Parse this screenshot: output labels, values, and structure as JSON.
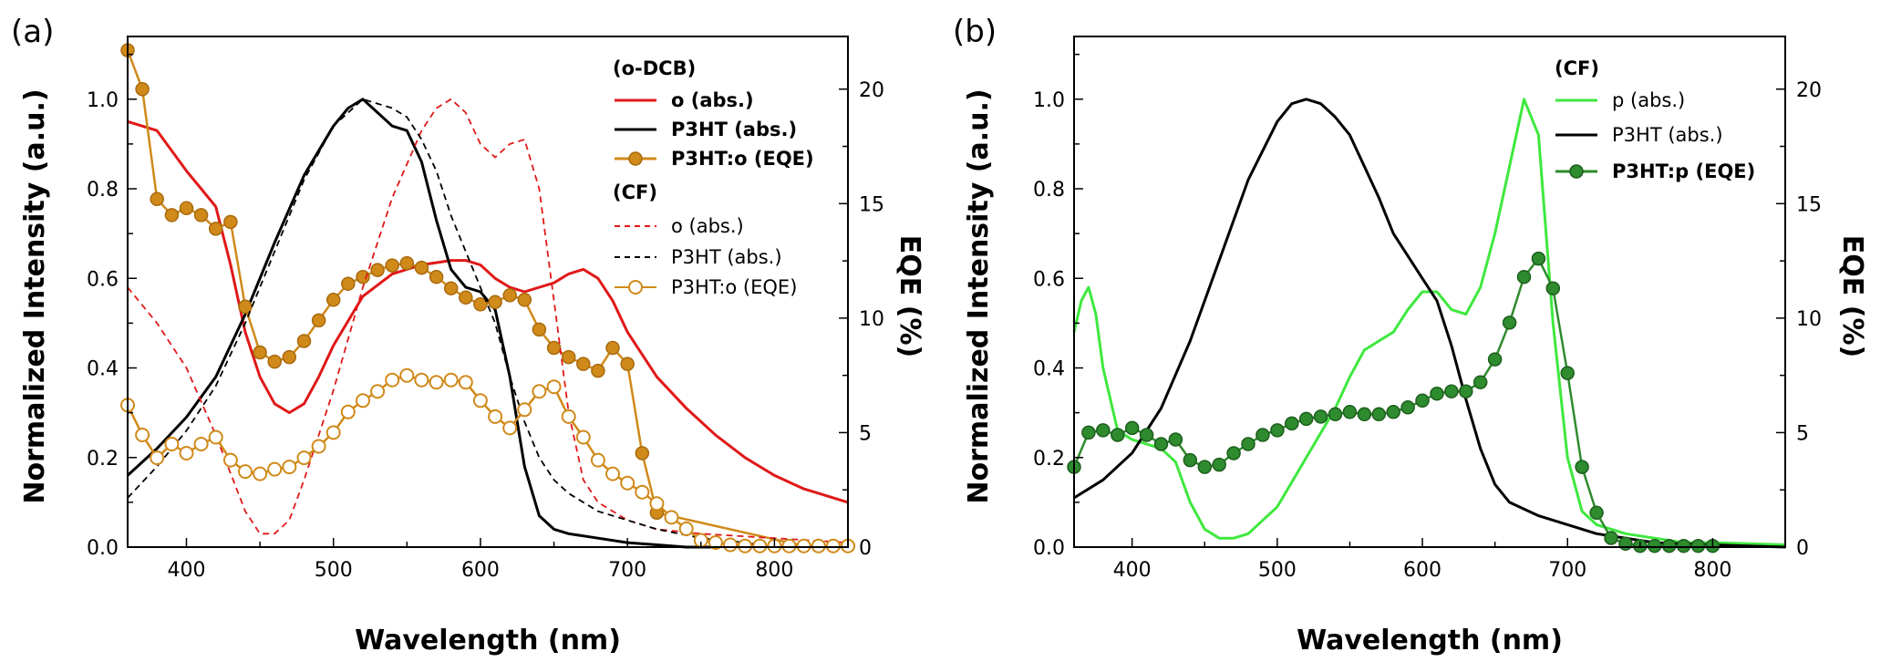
{
  "chart_data": [
    {
      "type": "line",
      "panel_label": "(a)",
      "xlabel": "Wavelength (nm)",
      "ylabel": "Normalized Intensity (a.u.)",
      "y2label": "EQE (%)",
      "xlim": [
        360,
        850
      ],
      "ylim": [
        0,
        1.14
      ],
      "y2lim": [
        0,
        22.3
      ],
      "xticks": [
        400,
        500,
        600,
        700,
        800
      ],
      "yticks": [
        0.0,
        0.2,
        0.4,
        0.6,
        0.8,
        1.0
      ],
      "y2ticks": [
        0,
        5,
        10,
        15,
        20
      ],
      "legend_groups": [
        {
          "title": "(o-DCB)",
          "entries": [
            "o (abs.)",
            "P3HT (abs.)",
            "P3HT:o (EQE)"
          ]
        },
        {
          "title": "(CF)",
          "entries": [
            "o (abs.)",
            "P3HT (abs.)",
            "P3HT:o (EQE)"
          ]
        }
      ],
      "series": [
        {
          "name": "o (abs.) (o-DCB)",
          "axis": "left",
          "color": "#e01818",
          "style": "solid",
          "x": [
            360,
            380,
            400,
            410,
            420,
            430,
            440,
            450,
            460,
            470,
            480,
            490,
            500,
            520,
            540,
            560,
            580,
            590,
            600,
            610,
            620,
            630,
            650,
            660,
            670,
            680,
            690,
            700,
            720,
            740,
            760,
            780,
            800,
            820,
            850
          ],
          "y": [
            0.95,
            0.93,
            0.84,
            0.8,
            0.76,
            0.63,
            0.48,
            0.38,
            0.32,
            0.3,
            0.32,
            0.38,
            0.45,
            0.56,
            0.61,
            0.63,
            0.64,
            0.64,
            0.63,
            0.6,
            0.58,
            0.57,
            0.59,
            0.61,
            0.62,
            0.6,
            0.55,
            0.48,
            0.38,
            0.31,
            0.25,
            0.2,
            0.16,
            0.13,
            0.1
          ]
        },
        {
          "name": "P3HT (abs.) (o-DCB)",
          "axis": "left",
          "color": "#000000",
          "style": "solid",
          "x": [
            360,
            380,
            400,
            420,
            440,
            460,
            480,
            500,
            510,
            520,
            530,
            540,
            550,
            560,
            570,
            580,
            590,
            600,
            610,
            620,
            630,
            640,
            650,
            660,
            680,
            700,
            720,
            740,
            760
          ],
          "y": [
            0.16,
            0.22,
            0.29,
            0.38,
            0.52,
            0.68,
            0.83,
            0.94,
            0.98,
            1.0,
            0.97,
            0.94,
            0.93,
            0.86,
            0.73,
            0.62,
            0.58,
            0.57,
            0.53,
            0.38,
            0.18,
            0.07,
            0.04,
            0.03,
            0.02,
            0.01,
            0.005,
            0.0,
            0.0
          ]
        },
        {
          "name": "P3HT:o (EQE) (o-DCB)",
          "axis": "right",
          "color": "#d08a1a",
          "style": "solid",
          "marker": "filled",
          "x": [
            360,
            370,
            380,
            390,
            400,
            410,
            420,
            430,
            440,
            450,
            460,
            470,
            480,
            490,
            500,
            510,
            520,
            530,
            540,
            550,
            560,
            570,
            580,
            590,
            600,
            610,
            620,
            630,
            640,
            650,
            660,
            670,
            680,
            690,
            700,
            710,
            720,
            820,
            830,
            840,
            850
          ],
          "y": [
            21.7,
            20.0,
            15.2,
            14.5,
            14.8,
            14.5,
            13.9,
            14.2,
            10.5,
            8.5,
            8.1,
            8.3,
            9.0,
            9.9,
            10.8,
            11.5,
            11.8,
            12.1,
            12.3,
            12.4,
            12.2,
            11.8,
            11.3,
            10.9,
            10.6,
            10.7,
            11.0,
            10.8,
            9.5,
            8.7,
            8.3,
            8.0,
            7.7,
            8.7,
            8.0,
            4.1,
            1.5,
            0.05,
            0.05,
            0.05,
            0.05
          ]
        },
        {
          "name": "o (abs.) (CF)",
          "axis": "left",
          "color": "#e01818",
          "style": "dashed",
          "x": [
            360,
            380,
            400,
            420,
            440,
            450,
            460,
            470,
            480,
            500,
            520,
            540,
            560,
            570,
            580,
            590,
            600,
            610,
            620,
            630,
            640,
            650,
            660,
            670,
            680,
            700,
            720,
            750,
            800,
            850
          ],
          "y": [
            0.58,
            0.5,
            0.4,
            0.25,
            0.08,
            0.03,
            0.03,
            0.06,
            0.15,
            0.35,
            0.58,
            0.78,
            0.93,
            0.98,
            1.0,
            0.97,
            0.9,
            0.87,
            0.9,
            0.91,
            0.8,
            0.55,
            0.3,
            0.15,
            0.1,
            0.06,
            0.04,
            0.03,
            0.02,
            0.01
          ]
        },
        {
          "name": "P3HT (abs.) (CF)",
          "axis": "left",
          "color": "#000000",
          "style": "dashed",
          "x": [
            360,
            380,
            400,
            420,
            440,
            460,
            480,
            500,
            520,
            540,
            550,
            560,
            570,
            580,
            590,
            600,
            610,
            620,
            630,
            640,
            650,
            660,
            680,
            700,
            720,
            750,
            780,
            800,
            850
          ],
          "y": [
            0.11,
            0.18,
            0.26,
            0.36,
            0.5,
            0.66,
            0.82,
            0.94,
            1.0,
            0.98,
            0.96,
            0.91,
            0.84,
            0.74,
            0.66,
            0.58,
            0.5,
            0.38,
            0.28,
            0.2,
            0.15,
            0.12,
            0.08,
            0.06,
            0.04,
            0.02,
            0.01,
            0.0,
            0.0
          ]
        },
        {
          "name": "P3HT:o (EQE) (CF)",
          "axis": "right",
          "color": "#d08a1a",
          "style": "solid",
          "marker": "open",
          "x": [
            360,
            370,
            380,
            390,
            400,
            410,
            420,
            430,
            440,
            450,
            460,
            470,
            480,
            490,
            500,
            510,
            520,
            530,
            540,
            550,
            560,
            570,
            580,
            590,
            600,
            610,
            620,
            630,
            640,
            650,
            660,
            670,
            680,
            690,
            700,
            710,
            720,
            730,
            740,
            750,
            760,
            770,
            780,
            790,
            800,
            810,
            820,
            830,
            840,
            850
          ],
          "y": [
            6.2,
            4.9,
            3.9,
            4.5,
            4.1,
            4.5,
            4.8,
            3.8,
            3.3,
            3.2,
            3.4,
            3.5,
            3.9,
            4.4,
            5.0,
            5.9,
            6.4,
            6.8,
            7.3,
            7.5,
            7.3,
            7.2,
            7.3,
            7.2,
            6.4,
            5.7,
            5.2,
            6.0,
            6.8,
            7.0,
            5.7,
            4.8,
            3.8,
            3.2,
            2.8,
            2.4,
            1.9,
            1.3,
            0.8,
            0.3,
            0.2,
            0.1,
            0.05,
            0.05,
            0.05,
            0.05,
            0.05,
            0.05,
            0.05,
            0.05
          ]
        }
      ]
    },
    {
      "type": "line",
      "panel_label": "(b)",
      "xlabel": "Wavelength (nm)",
      "ylabel": "Normalized Intensity (a.u.)",
      "y2label": "EQE (%)",
      "xlim": [
        360,
        850
      ],
      "ylim": [
        0,
        1.14
      ],
      "y2lim": [
        0,
        22.3
      ],
      "xticks": [
        400,
        500,
        600,
        700,
        800
      ],
      "yticks": [
        0.0,
        0.2,
        0.4,
        0.6,
        0.8,
        1.0
      ],
      "y2ticks": [
        0,
        5,
        10,
        15,
        20
      ],
      "legend_groups": [
        {
          "title": "(CF)",
          "entries": [
            "p (abs.)",
            "P3HT (abs.)",
            "P3HT:p (EQE)"
          ]
        }
      ],
      "series": [
        {
          "name": "p (abs.)",
          "axis": "left",
          "color": "#3ee83e",
          "style": "solid",
          "x": [
            360,
            365,
            370,
            375,
            380,
            390,
            400,
            410,
            420,
            430,
            440,
            450,
            460,
            470,
            480,
            500,
            520,
            540,
            550,
            560,
            570,
            580,
            590,
            600,
            610,
            620,
            630,
            640,
            650,
            660,
            670,
            680,
            690,
            700,
            710,
            720,
            740,
            760,
            780,
            800,
            850
          ],
          "y": [
            0.48,
            0.55,
            0.58,
            0.52,
            0.4,
            0.26,
            0.24,
            0.23,
            0.22,
            0.19,
            0.1,
            0.04,
            0.02,
            0.02,
            0.03,
            0.09,
            0.2,
            0.31,
            0.38,
            0.44,
            0.46,
            0.48,
            0.53,
            0.57,
            0.57,
            0.53,
            0.52,
            0.58,
            0.7,
            0.85,
            1.0,
            0.92,
            0.5,
            0.2,
            0.08,
            0.05,
            0.03,
            0.02,
            0.01,
            0.01,
            0.005
          ]
        },
        {
          "name": "P3HT (abs.)",
          "axis": "left",
          "color": "#000000",
          "style": "solid",
          "x": [
            360,
            380,
            400,
            420,
            440,
            460,
            480,
            500,
            510,
            520,
            530,
            540,
            550,
            560,
            570,
            580,
            590,
            600,
            610,
            620,
            630,
            640,
            650,
            660,
            680,
            700,
            720,
            740,
            760,
            800,
            850
          ],
          "y": [
            0.11,
            0.15,
            0.21,
            0.31,
            0.46,
            0.64,
            0.82,
            0.95,
            0.99,
            1.0,
            0.99,
            0.96,
            0.92,
            0.85,
            0.78,
            0.7,
            0.65,
            0.6,
            0.55,
            0.45,
            0.33,
            0.22,
            0.14,
            0.1,
            0.07,
            0.05,
            0.03,
            0.02,
            0.01,
            0.005,
            0.0
          ]
        },
        {
          "name": "P3HT:p (EQE)",
          "axis": "right",
          "color": "#2e8b2e",
          "style": "solid",
          "marker": "filled",
          "x": [
            360,
            370,
            380,
            390,
            400,
            410,
            420,
            430,
            440,
            450,
            460,
            470,
            480,
            490,
            500,
            510,
            520,
            530,
            540,
            550,
            560,
            570,
            580,
            590,
            600,
            610,
            620,
            630,
            640,
            650,
            660,
            670,
            680,
            690,
            700,
            710,
            720,
            730,
            740,
            750,
            760,
            770,
            780,
            790,
            800
          ],
          "y": [
            3.5,
            5.0,
            5.1,
            4.9,
            5.2,
            4.9,
            4.5,
            4.7,
            3.8,
            3.5,
            3.6,
            4.1,
            4.5,
            4.9,
            5.1,
            5.4,
            5.6,
            5.7,
            5.8,
            5.9,
            5.8,
            5.8,
            5.9,
            6.1,
            6.4,
            6.7,
            6.8,
            6.8,
            7.2,
            8.2,
            9.8,
            11.8,
            12.6,
            11.3,
            7.6,
            3.5,
            1.5,
            0.4,
            0.15,
            0.05,
            0.05,
            0.05,
            0.05,
            0.05,
            0.05
          ]
        }
      ]
    }
  ]
}
